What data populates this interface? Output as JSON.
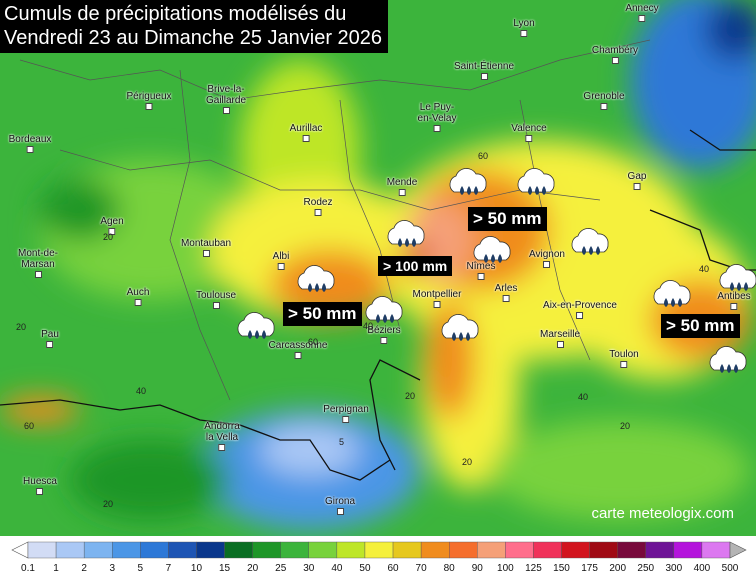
{
  "header": {
    "title": [
      "Cumuls de précipitations modélisés du",
      "Vendredi 23 au Dimanche 25 Janvier 2026"
    ]
  },
  "cities": [
    "Annecy",
    "Lyon",
    "Chambéry",
    "Saint-Étienne",
    "Grenoble",
    "Périgueux",
    "Brive-la-\nGaillarde",
    "Le Puy-\nen-Velay",
    "Valence",
    "Aurillac",
    "Bordeaux",
    "Mende",
    "Gap",
    "Rodez",
    "Agen",
    "Montauban",
    "Mont-de-\nMarsan",
    "Albi",
    "Nîmes",
    "Avignon",
    "Auch",
    "Toulouse",
    "Arles",
    "Antibes",
    "Montpellier",
    "Aix-en-Provence",
    "Pau",
    "Béziers",
    "Marseille",
    "Carcassonne",
    "Toulon",
    "Perpignan",
    "Andorra\nla Vella",
    "Huesca",
    "Girona"
  ],
  "annotations": [
    "> 100 mm",
    "> 50 mm",
    "> 50 mm",
    "> 50 mm"
  ],
  "contour_labels": [
    "60",
    "20",
    "40",
    "20",
    "40",
    "60",
    "60",
    "40",
    "5",
    "20",
    "20",
    "20",
    "40",
    "20"
  ],
  "legend": {
    "labels": [
      "0.1",
      "1",
      "2",
      "3",
      "5",
      "7",
      "10",
      "15",
      "20",
      "25",
      "30",
      "40",
      "50",
      "60",
      "70",
      "80",
      "90",
      "100",
      "125",
      "150",
      "175",
      "200",
      "250",
      "300",
      "400",
      "500"
    ],
    "colors": [
      "#d2dcf5",
      "#aac8f5",
      "#7db4f0",
      "#4b96e6",
      "#2d78d7",
      "#1e55b4",
      "#0a378c",
      "#0a6e23",
      "#1e9628",
      "#3cb43c",
      "#78d23c",
      "#bee628",
      "#f5f03c",
      "#e6c81e",
      "#f08c1e",
      "#f56e2d",
      "#f5a078",
      "#ff6e8c",
      "#f0325a",
      "#d2141e",
      "#a00a14",
      "#780a3c",
      "#6e1496",
      "#b414dc",
      "#dc78f0"
    ],
    "under_color": "#ffffff",
    "over_color": "#b4b4b4"
  },
  "credit": "carte meteologix.com"
}
